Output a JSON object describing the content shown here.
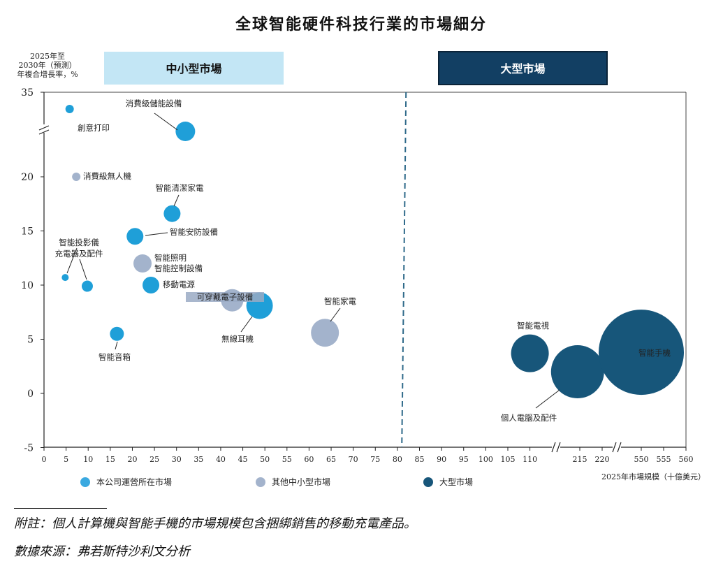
{
  "chart_data": {
    "type": "scatter",
    "title": "全球智能硬件科技行業的市場細分",
    "ylabel_lines": [
      "2025年至",
      "2030年（預測）",
      "年複合增長率，%"
    ],
    "xlabel": "2025年市場規模（十億美元）",
    "ylim": [
      -5,
      35
    ],
    "y_ticks": [
      "35",
      "20",
      "15",
      "10",
      "5",
      "0",
      "-5"
    ],
    "x_ticks": [
      "0",
      "5",
      "10",
      "15",
      "20",
      "25",
      "30",
      "35",
      "40",
      "45",
      "50",
      "55",
      "60",
      "65",
      "70",
      "75",
      "80",
      "85",
      "90",
      "95",
      "100",
      "105",
      "110",
      "215",
      "220",
      "550",
      "555",
      "560"
    ],
    "axis_breaks": [
      "y: 20-35",
      "x: 110-215",
      "x: 220-550"
    ],
    "segments": [
      {
        "name": "中小型市場",
        "style": "light"
      },
      {
        "name": "大型市場",
        "style": "dark"
      }
    ],
    "divider_x": 81,
    "legend": [
      {
        "name": "本公司運營所在市場",
        "color": "#3aa9e0"
      },
      {
        "name": "其他中小型市場",
        "color": "#a3b3cc"
      },
      {
        "name": "大型市場",
        "color": "#17567a"
      }
    ],
    "bubbles": [
      {
        "name": "創意打印",
        "x": 5.8,
        "y": 32,
        "category": "company"
      },
      {
        "name": "消費級儲能設備",
        "x": 32,
        "y": 28,
        "category": "company"
      },
      {
        "name": "消費級無人機",
        "x": 7.3,
        "y": 20,
        "category": "other"
      },
      {
        "name": "智能清潔家電",
        "x": 29,
        "y": 16.6,
        "category": "company"
      },
      {
        "name": "智能安防設備",
        "x": 20.6,
        "y": 14.5,
        "category": "company"
      },
      {
        "name": "智能照明\n智能控制設備",
        "x": 22.3,
        "y": 12,
        "category": "other"
      },
      {
        "name": "智能投影儀",
        "x": 4.8,
        "y": 10.7,
        "category": "company"
      },
      {
        "name": "充電器及配件",
        "x": 9.8,
        "y": 9.9,
        "category": "company"
      },
      {
        "name": "移動電源",
        "x": 24.2,
        "y": 10,
        "category": "company"
      },
      {
        "name": "可穿戴電子設備",
        "x": 42.6,
        "y": 8.6,
        "category": "other"
      },
      {
        "name": "無線耳機",
        "x": 48.8,
        "y": 8.1,
        "category": "company"
      },
      {
        "name": "智能家電",
        "x": 63.6,
        "y": 5.6,
        "category": "other"
      },
      {
        "name": "智能音箱",
        "x": 16.5,
        "y": 5.5,
        "category": "company"
      },
      {
        "name": "智能電視",
        "x": 110,
        "y": 3.7,
        "category": "large"
      },
      {
        "name": "個人電腦及配件",
        "x": 214.5,
        "y": 2,
        "category": "large"
      },
      {
        "name": "智能手機",
        "x": 550,
        "y": 3.8,
        "category": "large"
      }
    ]
  },
  "colors": {
    "company": "#1f9fd8",
    "other": "#a3b3cc",
    "large": "#17567a",
    "seg_light_bg": "#c3e6f5",
    "seg_dark_bg": "#123f63",
    "divider": "#2f6a8a"
  },
  "footer": {
    "note": "附註：個人計算機與智能手機的市場規模包含捆綁銷售的移動充電產品。",
    "source": "數據來源：弗若斯特沙利文分析"
  }
}
